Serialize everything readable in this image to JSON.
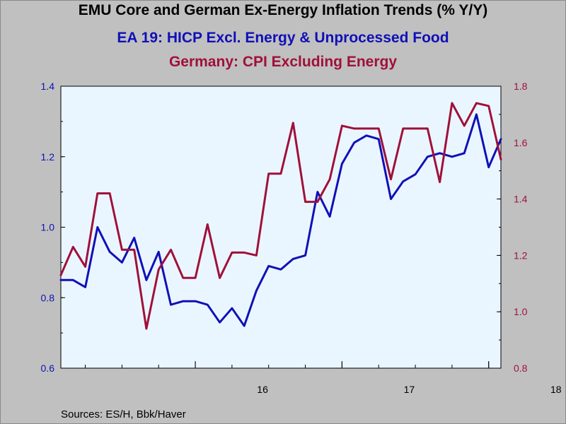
{
  "header": {
    "title": "EMU Core and German Ex-Energy Inflation Trends (% Y/Y)",
    "subtitle1": "EA 19: HICP Excl. Energy & Unprocessed Food",
    "subtitle2": "Germany: CPI Excluding Energy"
  },
  "footer": {
    "source": "Sources:  ES/H, Bbk/Haver"
  },
  "colors": {
    "background": "#c0c0c0",
    "plot_background": "#eaf6ff",
    "ea_series": "#1010b8",
    "de_series": "#a0103a",
    "left_axis": "#1010b8",
    "right_axis": "#a0103a"
  },
  "chart_data": {
    "type": "line",
    "title": "EMU Core and German Ex-Energy Inflation Trends (% Y/Y)",
    "x": [
      "2015-02",
      "2015-03",
      "2015-04",
      "2015-05",
      "2015-06",
      "2015-07",
      "2015-08",
      "2015-09",
      "2015-10",
      "2015-11",
      "2015-12",
      "2016-01",
      "2016-02",
      "2016-03",
      "2016-04",
      "2016-05",
      "2016-06",
      "2016-07",
      "2016-08",
      "2016-09",
      "2016-10",
      "2016-11",
      "2016-12",
      "2017-01",
      "2017-02",
      "2017-03",
      "2017-04",
      "2017-05",
      "2017-06",
      "2017-07",
      "2017-08",
      "2017-09",
      "2017-10",
      "2017-11",
      "2017-12",
      "2018-01",
      "2018-02"
    ],
    "x_range": [
      "2015-02",
      "2018-02"
    ],
    "x_ticks": [
      {
        "label": "16",
        "date": "2016-01"
      },
      {
        "label": "17",
        "date": "2017-01"
      },
      {
        "label": "18",
        "date": "2018-01"
      }
    ],
    "left_axis": {
      "ylim": [
        0.6,
        1.4
      ],
      "ticks": [
        "0.6",
        "0.8",
        "1.0",
        "1.2",
        "1.4"
      ]
    },
    "right_axis": {
      "ylim": [
        0.8,
        1.8
      ],
      "ticks": [
        "0.8",
        "1.0",
        "1.2",
        "1.4",
        "1.6",
        "1.8"
      ]
    },
    "grid": false,
    "series": [
      {
        "name": "EA 19: HICP Excl. Energy & Unprocessed Food",
        "axis": "left",
        "values": [
          0.85,
          0.85,
          0.83,
          1.0,
          0.93,
          0.9,
          0.97,
          0.85,
          0.93,
          0.78,
          0.79,
          0.79,
          0.78,
          0.73,
          0.77,
          0.72,
          0.82,
          0.89,
          0.88,
          0.91,
          0.92,
          1.1,
          1.03,
          1.18,
          1.24,
          1.26,
          1.25,
          1.08,
          1.13,
          1.15,
          1.2,
          1.21,
          1.2,
          1.21,
          1.32,
          1.17,
          1.25
        ]
      },
      {
        "name": "Germany: CPI Excluding Energy",
        "axis": "right",
        "values": [
          1.13,
          1.23,
          1.16,
          1.42,
          1.42,
          1.22,
          1.22,
          0.94,
          1.15,
          1.22,
          1.12,
          1.12,
          1.31,
          1.12,
          1.21,
          1.21,
          1.2,
          1.49,
          1.49,
          1.67,
          1.39,
          1.39,
          1.47,
          1.66,
          1.65,
          1.65,
          1.65,
          1.47,
          1.65,
          1.65,
          1.65,
          1.46,
          1.74,
          1.66,
          1.74,
          1.73,
          1.54
        ]
      }
    ]
  }
}
